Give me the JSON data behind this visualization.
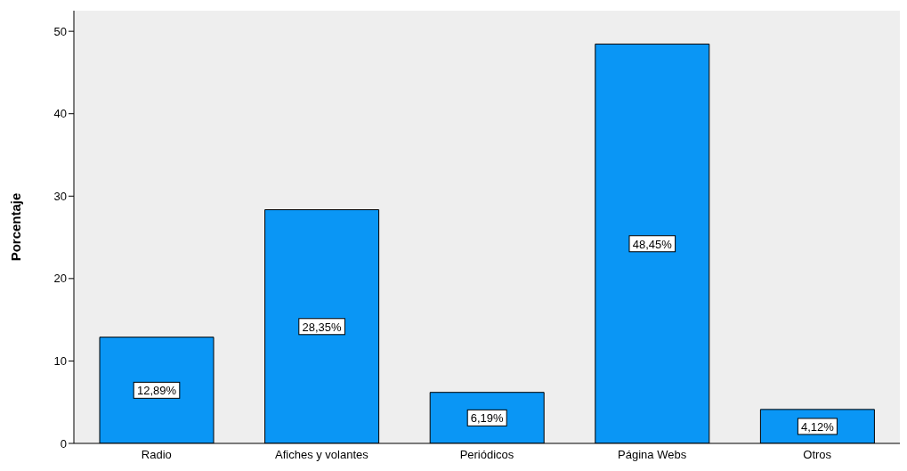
{
  "chart_data": {
    "type": "bar",
    "ylabel": "Porcentaje",
    "categories": [
      "Radio",
      "Afiches y volantes",
      "Periódicos",
      "Página Webs",
      "Otros"
    ],
    "values": [
      12.89,
      28.35,
      6.19,
      48.45,
      4.12
    ],
    "value_labels": [
      "12,89%",
      "28,35%",
      "6,19%",
      "48,45%",
      "4,12%"
    ],
    "color": "#0a96f5",
    "ylim": [
      0,
      52.5
    ],
    "yticks": [
      0,
      10,
      20,
      30,
      40,
      50
    ],
    "grid": false,
    "legend": false
  }
}
